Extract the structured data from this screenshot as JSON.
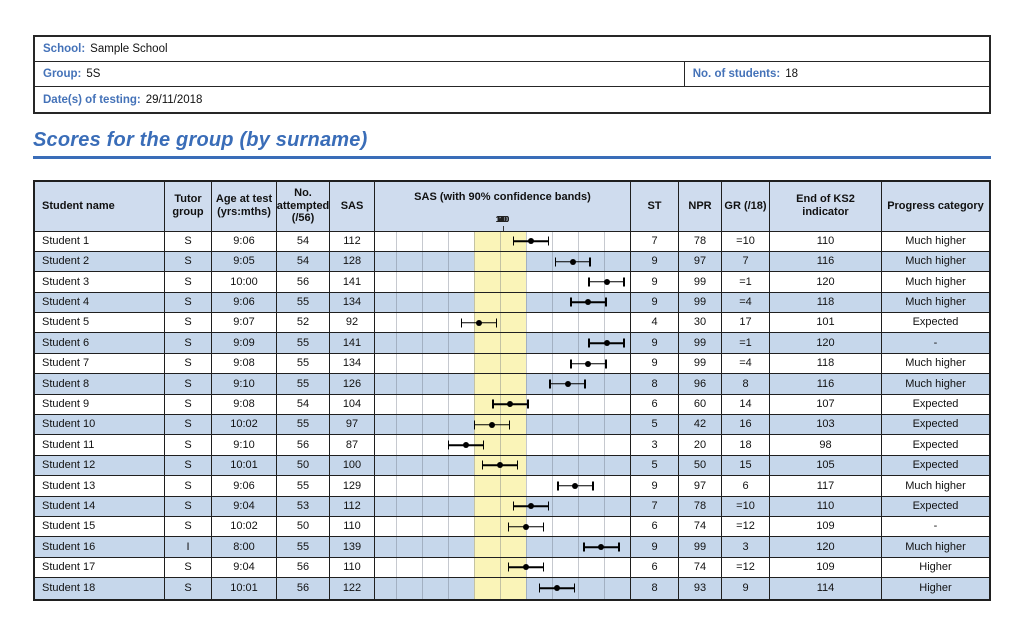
{
  "info": {
    "school_label": "School:",
    "school_value": "Sample School",
    "group_label": "Group:",
    "group_value": "5S",
    "students_label": "No. of students:",
    "students_value": "18",
    "date_label": "Date(s) of testing:",
    "date_value": "29/11/2018"
  },
  "title": "Scores for the group (by surname)",
  "colors": {
    "accent_blue": "#3a6db8",
    "label_blue": "#4472b8",
    "row_alt_blue": "#c6d7eb",
    "header_bg": "#cfdcee",
    "band_yellow": "#faf4b8",
    "border_dark": "#1f1f1f"
  },
  "table": {
    "headers": {
      "student": "Student name",
      "tutor": "Tutor group",
      "age": "Age at test (yrs:mths)",
      "attempted": "No. attempted (/56)",
      "sas": "SAS",
      "chart": "SAS (with 90% confidence bands)",
      "st": "ST",
      "npr": "NPR",
      "gr": "GR (/18)",
      "ks2": "End of KS2 indicator",
      "progress": "Progress category"
    },
    "rows": [
      {
        "name": "Student 1",
        "tutor": "S",
        "age": "9:06",
        "attempted": "54",
        "sas": "112",
        "st": "7",
        "npr": "78",
        "gr": "=10",
        "ks2": "110",
        "progress": "Much higher"
      },
      {
        "name": "Student 2",
        "tutor": "S",
        "age": "9:05",
        "attempted": "54",
        "sas": "128",
        "st": "9",
        "npr": "97",
        "gr": "7",
        "ks2": "116",
        "progress": "Much higher"
      },
      {
        "name": "Student 3",
        "tutor": "S",
        "age": "10:00",
        "attempted": "56",
        "sas": "141",
        "st": "9",
        "npr": "99",
        "gr": "=1",
        "ks2": "120",
        "progress": "Much higher"
      },
      {
        "name": "Student 4",
        "tutor": "S",
        "age": "9:06",
        "attempted": "55",
        "sas": "134",
        "st": "9",
        "npr": "99",
        "gr": "=4",
        "ks2": "118",
        "progress": "Much higher"
      },
      {
        "name": "Student 5",
        "tutor": "S",
        "age": "9:07",
        "attempted": "52",
        "sas": "92",
        "st": "4",
        "npr": "30",
        "gr": "17",
        "ks2": "101",
        "progress": "Expected"
      },
      {
        "name": "Student 6",
        "tutor": "S",
        "age": "9:09",
        "attempted": "55",
        "sas": "141",
        "st": "9",
        "npr": "99",
        "gr": "=1",
        "ks2": "120",
        "progress": "-"
      },
      {
        "name": "Student 7",
        "tutor": "S",
        "age": "9:08",
        "attempted": "55",
        "sas": "134",
        "st": "9",
        "npr": "99",
        "gr": "=4",
        "ks2": "118",
        "progress": "Much higher"
      },
      {
        "name": "Student 8",
        "tutor": "S",
        "age": "9:10",
        "attempted": "55",
        "sas": "126",
        "st": "8",
        "npr": "96",
        "gr": "8",
        "ks2": "116",
        "progress": "Much higher"
      },
      {
        "name": "Student 9",
        "tutor": "S",
        "age": "9:08",
        "attempted": "54",
        "sas": "104",
        "st": "6",
        "npr": "60",
        "gr": "14",
        "ks2": "107",
        "progress": "Expected"
      },
      {
        "name": "Student 10",
        "tutor": "S",
        "age": "10:02",
        "attempted": "55",
        "sas": "97",
        "st": "5",
        "npr": "42",
        "gr": "16",
        "ks2": "103",
        "progress": "Expected"
      },
      {
        "name": "Student 11",
        "tutor": "S",
        "age": "9:10",
        "attempted": "56",
        "sas": "87",
        "st": "3",
        "npr": "20",
        "gr": "18",
        "ks2": "98",
        "progress": "Expected"
      },
      {
        "name": "Student 12",
        "tutor": "S",
        "age": "10:01",
        "attempted": "50",
        "sas": "100",
        "st": "5",
        "npr": "50",
        "gr": "15",
        "ks2": "105",
        "progress": "Expected"
      },
      {
        "name": "Student 13",
        "tutor": "S",
        "age": "9:06",
        "attempted": "55",
        "sas": "129",
        "st": "9",
        "npr": "97",
        "gr": "6",
        "ks2": "117",
        "progress": "Much higher"
      },
      {
        "name": "Student 14",
        "tutor": "S",
        "age": "9:04",
        "attempted": "53",
        "sas": "112",
        "st": "7",
        "npr": "78",
        "gr": "=10",
        "ks2": "110",
        "progress": "Expected"
      },
      {
        "name": "Student 15",
        "tutor": "S",
        "age": "10:02",
        "attempted": "50",
        "sas": "110",
        "st": "6",
        "npr": "74",
        "gr": "=12",
        "ks2": "109",
        "progress": "-"
      },
      {
        "name": "Student 16",
        "tutor": "I",
        "age": "8:00",
        "attempted": "55",
        "sas": "139",
        "st": "9",
        "npr": "99",
        "gr": "3",
        "ks2": "120",
        "progress": "Much higher"
      },
      {
        "name": "Student 17",
        "tutor": "S",
        "age": "9:04",
        "attempted": "56",
        "sas": "110",
        "st": "6",
        "npr": "74",
        "gr": "=12",
        "ks2": "109",
        "progress": "Higher"
      },
      {
        "name": "Student 18",
        "tutor": "S",
        "age": "10:01",
        "attempted": "56",
        "sas": "122",
        "st": "8",
        "npr": "93",
        "gr": "9",
        "ks2": "114",
        "progress": "Higher"
      }
    ]
  },
  "chart_data": {
    "type": "error-bar",
    "title": "SAS (with 90% confidence bands)",
    "x_axis": {
      "min": 52,
      "max": 150,
      "ticks": [
        60,
        70,
        80,
        90,
        100,
        110,
        120,
        130,
        140
      ]
    },
    "average_band": {
      "from": 90,
      "to": 110
    },
    "ci_half_width": 7,
    "series": [
      {
        "label": "Student 1",
        "sas": 112,
        "lo": 105,
        "hi": 119
      },
      {
        "label": "Student 2",
        "sas": 128,
        "lo": 121,
        "hi": 135
      },
      {
        "label": "Student 3",
        "sas": 141,
        "lo": 134,
        "hi": 148
      },
      {
        "label": "Student 4",
        "sas": 134,
        "lo": 127,
        "hi": 141
      },
      {
        "label": "Student 5",
        "sas": 92,
        "lo": 85,
        "hi": 99
      },
      {
        "label": "Student 6",
        "sas": 141,
        "lo": 134,
        "hi": 148
      },
      {
        "label": "Student 7",
        "sas": 134,
        "lo": 127,
        "hi": 141
      },
      {
        "label": "Student 8",
        "sas": 126,
        "lo": 119,
        "hi": 133
      },
      {
        "label": "Student 9",
        "sas": 104,
        "lo": 97,
        "hi": 111
      },
      {
        "label": "Student 10",
        "sas": 97,
        "lo": 90,
        "hi": 104
      },
      {
        "label": "Student 11",
        "sas": 87,
        "lo": 80,
        "hi": 94
      },
      {
        "label": "Student 12",
        "sas": 100,
        "lo": 93,
        "hi": 107
      },
      {
        "label": "Student 13",
        "sas": 129,
        "lo": 122,
        "hi": 136
      },
      {
        "label": "Student 14",
        "sas": 112,
        "lo": 105,
        "hi": 119
      },
      {
        "label": "Student 15",
        "sas": 110,
        "lo": 103,
        "hi": 117
      },
      {
        "label": "Student 16",
        "sas": 139,
        "lo": 132,
        "hi": 146
      },
      {
        "label": "Student 17",
        "sas": 110,
        "lo": 103,
        "hi": 117
      },
      {
        "label": "Student 18",
        "sas": 122,
        "lo": 115,
        "hi": 129
      }
    ]
  }
}
